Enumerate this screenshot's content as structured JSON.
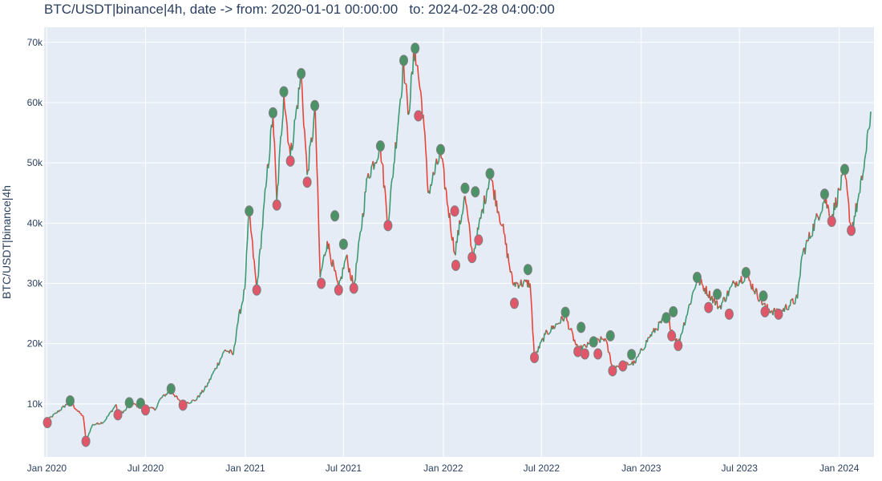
{
  "chart_data": {
    "type": "line",
    "title": "BTC/USDT|binance|4h, date -> from: 2020-01-01 00:00:00   to: 2024-02-28 04:00:00",
    "ylabel": "BTC/USDT|binance|4h",
    "xlabel": "",
    "grid": true,
    "x_range": [
      "2019-12-27",
      "2024-03-05"
    ],
    "ylim": [
      1200,
      72500
    ],
    "x_ticks": [
      {
        "date": "2020-01-01",
        "label": "Jan 2020"
      },
      {
        "date": "2020-07-01",
        "label": "Jul 2020"
      },
      {
        "date": "2021-01-01",
        "label": "Jan 2021"
      },
      {
        "date": "2021-07-01",
        "label": "Jul 2021"
      },
      {
        "date": "2022-01-01",
        "label": "Jan 2022"
      },
      {
        "date": "2022-07-01",
        "label": "Jul 2022"
      },
      {
        "date": "2023-01-01",
        "label": "Jan 2023"
      },
      {
        "date": "2023-07-01",
        "label": "Jul 2023"
      },
      {
        "date": "2024-01-01",
        "label": "Jan 2024"
      }
    ],
    "y_ticks": [
      {
        "value": 10000,
        "label": "10k"
      },
      {
        "value": 20000,
        "label": "20k"
      },
      {
        "value": 30000,
        "label": "30k"
      },
      {
        "value": 40000,
        "label": "40k"
      },
      {
        "value": 50000,
        "label": "50k"
      },
      {
        "value": 60000,
        "label": "60k"
      },
      {
        "value": 70000,
        "label": "70k"
      }
    ],
    "price_series": {
      "name": "",
      "points": [
        [
          "2020-01-01",
          7200
        ],
        [
          "2020-01-20",
          8600
        ],
        [
          "2020-02-13",
          10400
        ],
        [
          "2020-02-28",
          8700
        ],
        [
          "2020-03-08",
          8000
        ],
        [
          "2020-03-12",
          5000
        ],
        [
          "2020-03-13",
          3800
        ],
        [
          "2020-03-25",
          6500
        ],
        [
          "2020-04-15",
          7000
        ],
        [
          "2020-05-08",
          9900
        ],
        [
          "2020-05-11",
          8300
        ],
        [
          "2020-05-25",
          8900
        ],
        [
          "2020-06-01",
          10300
        ],
        [
          "2020-06-26",
          9200
        ],
        [
          "2020-07-20",
          9200
        ],
        [
          "2020-07-28",
          10800
        ],
        [
          "2020-08-17",
          12300
        ],
        [
          "2020-09-05",
          10000
        ],
        [
          "2020-10-01",
          10600
        ],
        [
          "2020-10-21",
          12800
        ],
        [
          "2020-11-05",
          15500
        ],
        [
          "2020-11-25",
          19000
        ],
        [
          "2020-12-10",
          18200
        ],
        [
          "2020-12-17",
          23000
        ],
        [
          "2020-12-31",
          29000
        ],
        [
          "2021-01-08",
          41800
        ],
        [
          "2021-01-22",
          29000
        ],
        [
          "2021-02-08",
          46000
        ],
        [
          "2021-02-21",
          58000
        ],
        [
          "2021-02-28",
          43500
        ],
        [
          "2021-03-13",
          61500
        ],
        [
          "2021-03-25",
          51000
        ],
        [
          "2021-04-14",
          64500
        ],
        [
          "2021-04-25",
          48000
        ],
        [
          "2021-05-10",
          58500
        ],
        [
          "2021-05-19",
          31000
        ],
        [
          "2021-06-01",
          37000
        ],
        [
          "2021-06-22",
          29000
        ],
        [
          "2021-07-06",
          34500
        ],
        [
          "2021-07-20",
          29300
        ],
        [
          "2021-08-14",
          47500
        ],
        [
          "2021-09-07",
          52800
        ],
        [
          "2021-09-21",
          40000
        ],
        [
          "2021-10-20",
          66500
        ],
        [
          "2021-10-28",
          58000
        ],
        [
          "2021-11-10",
          68900
        ],
        [
          "2021-11-25",
          58000
        ],
        [
          "2021-12-04",
          45000
        ],
        [
          "2021-12-27",
          51500
        ],
        [
          "2022-01-22",
          35000
        ],
        [
          "2022-02-10",
          44500
        ],
        [
          "2022-02-24",
          34300
        ],
        [
          "2022-03-28",
          48000
        ],
        [
          "2022-04-20",
          39500
        ],
        [
          "2022-05-09",
          30000
        ],
        [
          "2022-06-10",
          30000
        ],
        [
          "2022-06-18",
          17700
        ],
        [
          "2022-07-08",
          21500
        ],
        [
          "2022-08-14",
          24500
        ],
        [
          "2022-09-06",
          19000
        ],
        [
          "2022-10-26",
          20900
        ],
        [
          "2022-11-09",
          16200
        ],
        [
          "2022-12-20",
          16800
        ],
        [
          "2023-01-15",
          21000
        ],
        [
          "2023-02-16",
          24500
        ],
        [
          "2023-03-10",
          19900
        ],
        [
          "2023-04-14",
          30800
        ],
        [
          "2023-05-25",
          26000
        ],
        [
          "2023-06-21",
          30000
        ],
        [
          "2023-07-13",
          31300
        ],
        [
          "2023-08-18",
          26000
        ],
        [
          "2023-09-11",
          25000
        ],
        [
          "2023-10-16",
          27500
        ],
        [
          "2023-10-24",
          34500
        ],
        [
          "2023-12-05",
          44000
        ],
        [
          "2023-12-18",
          41000
        ],
        [
          "2024-01-11",
          48500
        ],
        [
          "2024-01-23",
          38800
        ],
        [
          "2024-02-08",
          45000
        ],
        [
          "2024-02-20",
          52000
        ],
        [
          "2024-02-28",
          58500
        ]
      ]
    },
    "marker_series": [
      {
        "name": "",
        "color": "#4b9266",
        "points": [
          [
            "2020-02-13",
            10500
          ],
          [
            "2020-06-01",
            10200
          ],
          [
            "2020-06-22",
            10100
          ],
          [
            "2020-08-17",
            12500
          ],
          [
            "2021-01-08",
            42000
          ],
          [
            "2021-02-21",
            58300
          ],
          [
            "2021-03-13",
            61800
          ],
          [
            "2021-04-14",
            64800
          ],
          [
            "2021-05-09",
            59500
          ],
          [
            "2021-06-15",
            41200
          ],
          [
            "2021-07-01",
            36500
          ],
          [
            "2021-09-07",
            52800
          ],
          [
            "2021-10-20",
            67000
          ],
          [
            "2021-11-10",
            69000
          ],
          [
            "2021-12-27",
            52200
          ],
          [
            "2022-02-10",
            45800
          ],
          [
            "2022-03-01",
            45200
          ],
          [
            "2022-03-28",
            48200
          ],
          [
            "2022-06-06",
            32300
          ],
          [
            "2022-08-14",
            25200
          ],
          [
            "2022-09-12",
            22700
          ],
          [
            "2022-10-05",
            20300
          ],
          [
            "2022-11-05",
            21300
          ],
          [
            "2022-12-14",
            18200
          ],
          [
            "2023-02-16",
            24300
          ],
          [
            "2023-03-01",
            25300
          ],
          [
            "2023-04-14",
            31000
          ],
          [
            "2023-05-21",
            28200
          ],
          [
            "2023-07-13",
            31800
          ],
          [
            "2023-08-14",
            27900
          ],
          [
            "2023-12-05",
            44800
          ],
          [
            "2024-01-11",
            48900
          ]
        ]
      },
      {
        "name": "",
        "color": "#e2566a",
        "points": [
          [
            "2020-01-02",
            6900
          ],
          [
            "2020-03-13",
            3800
          ],
          [
            "2020-05-11",
            8200
          ],
          [
            "2020-07-01",
            9000
          ],
          [
            "2020-09-08",
            9800
          ],
          [
            "2021-01-22",
            28900
          ],
          [
            "2021-02-28",
            43000
          ],
          [
            "2021-03-25",
            50300
          ],
          [
            "2021-04-25",
            46800
          ],
          [
            "2021-05-21",
            30000
          ],
          [
            "2021-06-22",
            28900
          ],
          [
            "2021-07-20",
            29200
          ],
          [
            "2021-09-21",
            39600
          ],
          [
            "2021-11-16",
            57800
          ],
          [
            "2022-01-22",
            42000
          ],
          [
            "2022-01-24",
            33000
          ],
          [
            "2022-02-23",
            34300
          ],
          [
            "2022-03-07",
            37200
          ],
          [
            "2022-05-12",
            26700
          ],
          [
            "2022-06-18",
            17700
          ],
          [
            "2022-09-06",
            18700
          ],
          [
            "2022-09-19",
            18300
          ],
          [
            "2022-10-13",
            18300
          ],
          [
            "2022-11-09",
            15500
          ],
          [
            "2022-11-28",
            16300
          ],
          [
            "2023-02-26",
            21300
          ],
          [
            "2023-03-10",
            19700
          ],
          [
            "2023-05-05",
            26000
          ],
          [
            "2023-06-12",
            24900
          ],
          [
            "2023-08-17",
            25300
          ],
          [
            "2023-09-11",
            24900
          ],
          [
            "2023-12-18",
            40300
          ],
          [
            "2024-01-23",
            38800
          ]
        ]
      }
    ]
  }
}
